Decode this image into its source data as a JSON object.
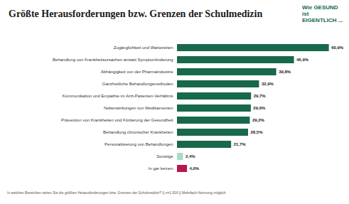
{
  "chart_data": {
    "type": "bar",
    "orientation": "horizontal",
    "title": "Größte Herausforderungen bzw. Grenzen der Schulmedizin",
    "logo": "Wie GESUND ist EIGENTLICH ...",
    "caption": "In welchen Bereichen sehen Sie die größten Herausforderungen bzw. Grenzen der Schulmedizin? || n=1.000 || Mehrfach-Nennung möglich",
    "categories": [
      "Zugänglichkeit und Wartezeiten",
      "Behandlung von Krankheitsursachen anstatt Symptomlinderung",
      "Abhängigkeit von der Pharmaindustrie",
      "Ganzheitliche Behandlungsmethoden",
      "Kommunikation und Empathie im Arzt-Patienten-Verhältnis",
      "Nebenwirkungen von Medikamenten",
      "Prävention von Krankheiten und Förderung der Gesundheit",
      "Behandlung chronischer Krankheiten",
      "Personalisierung von Behandlungen",
      "Sonstige",
      "In gar keinen"
    ],
    "values": [
      60.9,
      46.9,
      39.8,
      32.9,
      29.7,
      29.6,
      29.2,
      28.5,
      21.7,
      2.4,
      4.0
    ],
    "value_labels": [
      "60,9%",
      "46,9%",
      "39,8%",
      "32,9%",
      "29,7%",
      "29,6%",
      "29,2%",
      "28,5%",
      "21,7%",
      "2,4%",
      "4,0%"
    ],
    "colors": [
      "#17694a",
      "#17694a",
      "#17694a",
      "#17694a",
      "#17694a",
      "#17694a",
      "#17694a",
      "#17694a",
      "#17694a",
      "#a9dcc6",
      "#b8164e"
    ],
    "xlim": [
      0,
      61
    ],
    "tick_labels": "y",
    "grid": false,
    "data_labels": true
  }
}
